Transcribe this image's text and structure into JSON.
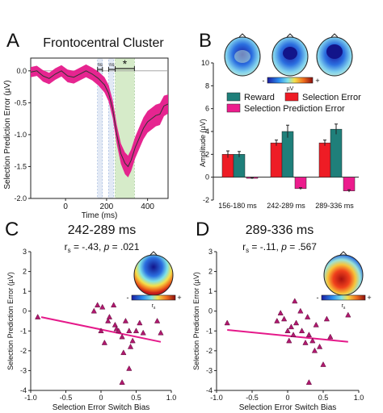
{
  "panels": {
    "A": {
      "letter": "A",
      "title": "Frontocentral Cluster"
    },
    "B": {
      "letter": "B"
    },
    "C": {
      "letter": "C",
      "title": "242-289 ms",
      "stat_prefix": "r",
      "stat_sub": "s",
      "stat_r": " = -.43, ",
      "stat_p_label": "p",
      "stat_p": " = .021"
    },
    "D": {
      "letter": "D",
      "title": "289-336 ms",
      "stat_prefix": "r",
      "stat_sub": "s",
      "stat_r": " = -.11, ",
      "stat_p_label": "p",
      "stat_p": " = .567"
    }
  },
  "colors": {
    "erp_line": "#333333",
    "erp_band": "#e5198a",
    "window_green": "#cfe8c0",
    "window_blue": "#dde6f4",
    "reward": "#1f7f7a",
    "selection_error": "#ee1c25",
    "selection_prediction_error": "#ec1c8d",
    "scatter_point": "#b0186e",
    "fit_line": "#e5198a"
  },
  "chart_data": [
    {
      "panel": "A",
      "type": "line",
      "xlabel": "Time (ms)",
      "ylabel": "Selection Prediction Error (µV)",
      "xlim": [
        -170,
        500
      ],
      "ylim": [
        -2.0,
        0.2
      ],
      "xticks": [
        0,
        200,
        400
      ],
      "yticks": [
        0.0,
        -0.5,
        -1.0,
        -1.5,
        -2.0
      ],
      "ytick_labels": [
        "0.0",
        "-0.5",
        "-1.0",
        "-1.5",
        "-2.0"
      ],
      "x": [
        -170,
        -140,
        -110,
        -80,
        -50,
        -20,
        10,
        40,
        70,
        100,
        130,
        160,
        190,
        210,
        230,
        250,
        270,
        290,
        305,
        320,
        340,
        360,
        380,
        400,
        420,
        440,
        460,
        480,
        500
      ],
      "y": [
        -0.02,
        0.0,
        -0.08,
        -0.12,
        -0.05,
        0.0,
        -0.08,
        -0.1,
        -0.05,
        0.0,
        -0.05,
        -0.12,
        -0.22,
        -0.35,
        -0.6,
        -1.0,
        -1.3,
        -1.45,
        -1.5,
        -1.4,
        -1.2,
        -1.05,
        -0.9,
        -0.8,
        -0.75,
        -0.7,
        -0.68,
        -0.55,
        -0.52
      ],
      "band_halfwidth": [
        0.08,
        0.08,
        0.09,
        0.09,
        0.09,
        0.09,
        0.1,
        0.1,
        0.1,
        0.1,
        0.1,
        0.11,
        0.12,
        0.13,
        0.14,
        0.15,
        0.16,
        0.17,
        0.17,
        0.17,
        0.17,
        0.17,
        0.17,
        0.17,
        0.17,
        0.17,
        0.17,
        0.16,
        0.15
      ],
      "windows": [
        {
          "x0": 156,
          "x1": 180,
          "style": "blue"
        },
        {
          "x0": 210,
          "x1": 234,
          "style": "blue"
        },
        {
          "x0": 242,
          "x1": 336,
          "style": "green"
        }
      ],
      "significance": [
        {
          "x0": 156,
          "x1": 180,
          "label": "ns"
        },
        {
          "x0": 210,
          "x1": 242,
          "label": "ns"
        },
        {
          "x0": 242,
          "x1": 336,
          "label": "*"
        }
      ]
    },
    {
      "panel": "B",
      "type": "bar",
      "ylabel": "Amplitude (µV)",
      "ylim": [
        -2,
        10
      ],
      "yticks": [
        -2,
        0,
        2,
        4,
        6,
        8,
        10
      ],
      "categories": [
        "156-180 ms",
        "242-289 ms",
        "289-336 ms"
      ],
      "series": [
        {
          "name": "Reward",
          "values": [
            2.0,
            4.0,
            4.2
          ],
          "errors": [
            0.25,
            0.55,
            0.45
          ]
        },
        {
          "name": "Selection Error",
          "values": [
            2.0,
            3.0,
            3.0
          ],
          "errors": [
            0.3,
            0.25,
            0.25
          ]
        },
        {
          "name": "Selection Prediction Error",
          "values": [
            -0.1,
            -1.0,
            -1.2
          ],
          "errors": [
            0.05,
            0.08,
            0.1
          ]
        }
      ],
      "colorbar_label": "µV",
      "colorbar_sign_left": "-",
      "colorbar_sign_right": "+"
    },
    {
      "panel": "C",
      "type": "scatter",
      "xlabel": "Selection Error Switch Bias",
      "ylabel": "Selection Prediction Error (µV)",
      "xlim": [
        -1.0,
        1.0
      ],
      "ylim": [
        -4,
        3
      ],
      "xticks": [
        -1.0,
        -0.5,
        0,
        0.5,
        1.0
      ],
      "xtick_labels": [
        "-1.0",
        "-0.5",
        "0",
        "0.5",
        "1.0"
      ],
      "yticks": [
        3,
        2,
        1,
        0,
        -1,
        -2,
        -3,
        -4
      ],
      "x": [
        -0.9,
        -0.1,
        -0.05,
        0.0,
        0.02,
        0.05,
        0.1,
        0.12,
        0.18,
        0.2,
        0.22,
        0.25,
        0.3,
        0.32,
        0.35,
        0.4,
        0.42,
        0.45,
        0.5,
        0.55,
        0.6,
        0.8,
        0.85,
        0.3,
        0.4
      ],
      "y": [
        -0.3,
        0.0,
        0.3,
        -1.0,
        0.2,
        -1.6,
        -0.5,
        -0.3,
        0.3,
        -0.7,
        -0.9,
        -1.0,
        -1.3,
        -2.1,
        -0.5,
        -1.0,
        -1.8,
        -1.5,
        -1.0,
        -0.6,
        -1.1,
        -0.5,
        -1.1,
        -3.6,
        -2.9
      ],
      "fit": {
        "x": [
          -0.85,
          0.85
        ],
        "y": [
          -0.3,
          -1.55
        ]
      },
      "colorbar_sign_left": "-",
      "colorbar_sign_right": "+",
      "colorbar_label": "r",
      "colorbar_label_sub": "s"
    },
    {
      "panel": "D",
      "type": "scatter",
      "xlabel": "Selection Error Switch Bias",
      "ylabel": "Selection Prediction Error (µV)",
      "xlim": [
        -1.0,
        1.0
      ],
      "ylim": [
        -4,
        3
      ],
      "xticks": [
        -1.0,
        -0.5,
        0,
        0.5,
        1.0
      ],
      "xtick_labels": [
        "-1.0",
        "-0.5",
        "0",
        "0.5",
        "1.0"
      ],
      "yticks": [
        3,
        2,
        1,
        0,
        -1,
        -2,
        -3,
        -4
      ],
      "x": [
        -0.85,
        -0.15,
        -0.1,
        -0.05,
        0.0,
        0.02,
        0.05,
        0.08,
        0.1,
        0.12,
        0.18,
        0.2,
        0.25,
        0.28,
        0.3,
        0.35,
        0.38,
        0.4,
        0.45,
        0.5,
        0.55,
        0.6,
        0.8,
        0.85,
        0.3
      ],
      "y": [
        -0.6,
        -0.5,
        -0.1,
        -0.4,
        -1.0,
        -1.5,
        -0.8,
        -1.2,
        0.5,
        -0.6,
        0.0,
        -1.0,
        -1.6,
        -0.3,
        -1.2,
        -1.5,
        -2.0,
        -0.7,
        -1.8,
        -2.7,
        -0.4,
        -1.3,
        0.7,
        -0.2,
        -3.6
      ],
      "fit": {
        "x": [
          -0.85,
          0.85
        ],
        "y": [
          -0.95,
          -1.55
        ]
      },
      "colorbar_sign_left": "-",
      "colorbar_sign_right": "+",
      "colorbar_label": "r",
      "colorbar_label_sub": "s"
    }
  ]
}
